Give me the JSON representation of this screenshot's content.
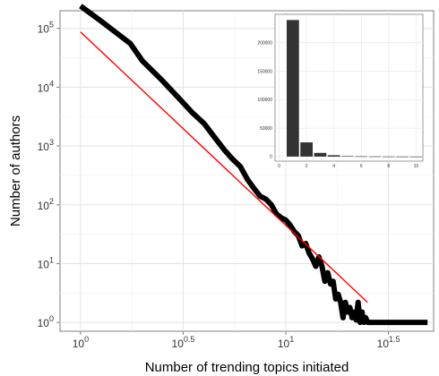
{
  "chart_data": [
    {
      "type": "line",
      "xlabel": "Number of trending topics initiated",
      "ylabel": "Number of authors",
      "x_scale": "log10",
      "y_scale": "log10",
      "xlim_log10": [
        -0.1,
        1.72
      ],
      "ylim_log10": [
        -0.15,
        5.3
      ],
      "x_ticks": [
        {
          "base": "10",
          "exp": "0",
          "log10": 0
        },
        {
          "base": "10",
          "exp": "0.5",
          "log10": 0.5
        },
        {
          "base": "10",
          "exp": "1",
          "log10": 1
        },
        {
          "base": "10",
          "exp": "1.5",
          "log10": 1.5
        }
      ],
      "y_ticks": [
        {
          "base": "10",
          "exp": "0",
          "log10": 0
        },
        {
          "base": "10",
          "exp": "1",
          "log10": 1
        },
        {
          "base": "10",
          "exp": "2",
          "log10": 2
        },
        {
          "base": "10",
          "exp": "3",
          "log10": 3
        },
        {
          "base": "10",
          "exp": "4",
          "log10": 4
        },
        {
          "base": "10",
          "exp": "5",
          "log10": 5
        }
      ],
      "grid": true,
      "series": [
        {
          "color": "#000000",
          "style": "thick",
          "x": [
            1,
            1.25,
            1.5,
            1.75,
            2,
            2.5,
            3,
            3.5,
            4,
            4.5,
            5,
            5.5,
            6,
            6.5,
            7,
            7.5,
            8,
            8.5,
            9,
            9.5,
            10,
            10.5,
            11,
            11.5,
            12,
            12.5,
            13,
            13.5,
            14,
            14.5,
            15,
            15.5,
            16,
            16.5,
            17,
            17.5,
            18,
            18.5,
            19,
            19.5,
            20,
            20.5,
            21,
            21.5,
            22,
            22.5,
            23,
            23.5,
            24,
            24.5,
            25,
            27,
            30,
            33,
            36,
            40,
            45,
            49
          ],
          "y": [
            240000,
            135000,
            83000,
            55000,
            28000,
            13000,
            6600,
            3700,
            2400,
            1400,
            870,
            600,
            450,
            270,
            190,
            140,
            125,
            100,
            70,
            60,
            55,
            45,
            35,
            30,
            20,
            22,
            15,
            12,
            9,
            13,
            9,
            5,
            7,
            4.5,
            5,
            2.5,
            3,
            2.2,
            1.2,
            2.2,
            1.5,
            1.8,
            1.2,
            1.5,
            1.1,
            2.2,
            1.0,
            1.5,
            1.0,
            1.2,
            1,
            1,
            1,
            1,
            1,
            1,
            1,
            1
          ]
        },
        {
          "color": "#ff0000",
          "style": "thin",
          "x": [
            1,
            25
          ],
          "y": [
            87000,
            2.2
          ]
        }
      ]
    },
    {
      "type": "bar",
      "inset": true,
      "categories": [
        1,
        2,
        3,
        4,
        5,
        6,
        7,
        8,
        9,
        10
      ],
      "values": [
        240000,
        25000,
        6500,
        2400,
        900,
        500,
        300,
        200,
        130,
        90
      ],
      "xlim": [
        -0.3,
        10.5
      ],
      "ylim": [
        -8000,
        250000
      ],
      "x_ticks": [
        "0",
        "2",
        "4",
        "6",
        "8",
        "10"
      ],
      "y_ticks": [
        "0",
        "50000",
        "100000",
        "150000",
        "200000"
      ],
      "bar_color": "#333333",
      "grid": true
    }
  ]
}
